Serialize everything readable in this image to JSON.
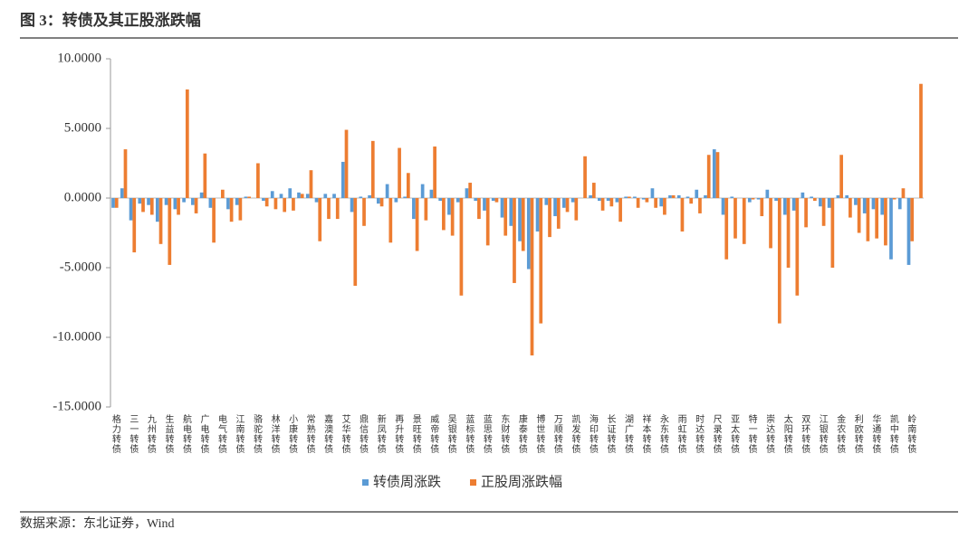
{
  "header": {
    "title": "图 3：转债及其正股涨跌幅"
  },
  "chart_data": {
    "type": "bar",
    "categories": [
      "格力转债",
      null,
      "三一转债",
      null,
      "九州转债",
      null,
      "生益转债",
      null,
      "航电转债",
      null,
      "广电转债",
      null,
      "电气转债",
      null,
      "江南转债",
      null,
      "骆驼转债",
      null,
      "林洋转债",
      null,
      "小康转债",
      null,
      "常熟转债",
      null,
      "嘉澳转债",
      null,
      "艾华转债",
      null,
      "鼎信转债",
      null,
      "新凤转债",
      null,
      "再升转债",
      null,
      "景旺转债",
      null,
      "威帝转债",
      null,
      "吴银转债",
      null,
      "蓝标转债",
      null,
      "蓝思转债",
      null,
      "东财转债",
      null,
      "康泰转债",
      null,
      "博世转债",
      null,
      "万顺转债",
      null,
      "凯发转债",
      null,
      "海印转债",
      null,
      "长证转债",
      null,
      "湖广转债",
      null,
      "祥本转债",
      null,
      "永东转债",
      null,
      "雨虹转债",
      null,
      "时达转债",
      null,
      "尺录转债",
      null,
      "亚太转债",
      null,
      "特一转债",
      null,
      "崇达转债",
      null,
      "太阳转债",
      null,
      "双环转债",
      null,
      "江银转债",
      null,
      "金农转债",
      null,
      "利欧转债",
      null,
      "华通转债",
      null,
      "凯中转债",
      null,
      "岭南转债",
      null
    ],
    "series": [
      {
        "name": "转债周涨跌",
        "color": "#5b9bd5",
        "values": [
          -0.7,
          0.7,
          -1.6,
          -0.4,
          -0.5,
          -1.7,
          -0.5,
          -0.8,
          -0.3,
          -0.5,
          0.4,
          -0.7,
          0,
          -0.8,
          -0.5,
          0.1,
          0,
          -0.2,
          0.5,
          0.3,
          0.7,
          0.4,
          0.3,
          -0.3,
          0.3,
          0.3,
          2.6,
          -1.0,
          0.1,
          0.2,
          -0.4,
          1.0,
          -0.3,
          0.1,
          -1.5,
          1.0,
          0.6,
          -0.2,
          -1.2,
          -0.3,
          0.7,
          -0.2,
          -0.9,
          -0.2,
          -1.4,
          -2.0,
          -3.1,
          -5.1,
          -2.4,
          -0.5,
          -1.3,
          -0.7,
          -0.3,
          0,
          0.2,
          -0.2,
          -0.2,
          -0.3,
          0.1,
          0.1,
          -0.1,
          0.7,
          -0.6,
          0.2,
          0.2,
          0.1,
          0.6,
          0.2,
          3.5,
          -1.2,
          0.1,
          0,
          -0.3,
          -0.1,
          0.6,
          -0.2,
          -1.2,
          -0.9,
          0.4,
          0.1,
          -0.6,
          -0.7,
          0.2,
          0.2,
          -0.5,
          -1.1,
          -0.8,
          -1.2,
          -4.4,
          -0.8,
          -4.8,
          0
        ]
      },
      {
        "name": "正股周涨跌幅",
        "color": "#ed7d31",
        "values": [
          -0.7,
          3.5,
          -3.9,
          -1.0,
          -1.2,
          -3.3,
          -4.8,
          -1.2,
          7.8,
          -1.1,
          3.2,
          -3.2,
          0.6,
          -1.7,
          -1.6,
          0.1,
          2.5,
          -0.6,
          -0.8,
          -1.0,
          -0.9,
          0.3,
          2.0,
          -3.1,
          -1.5,
          -1.5,
          4.9,
          -6.3,
          -2.0,
          4.1,
          -0.6,
          -3.2,
          3.6,
          1.8,
          -3.8,
          -1.6,
          3.7,
          -2.3,
          -2.7,
          -7.0,
          1.1,
          -1.5,
          -3.4,
          -0.3,
          -2.7,
          -6.1,
          -3.8,
          -11.3,
          -9.0,
          -2.8,
          -2.2,
          -1.0,
          -1.6,
          3.0,
          1.1,
          -0.9,
          -0.6,
          -1.7,
          0.1,
          -0.7,
          -0.3,
          -0.7,
          -1.2,
          0.2,
          -2.4,
          -0.4,
          -1.1,
          3.1,
          3.3,
          -4.4,
          -2.9,
          -3.3,
          -0.1,
          -1.3,
          -3.6,
          -9.0,
          -5.0,
          -7.0,
          -2.1,
          -0.2,
          -2.0,
          -5.0,
          3.1,
          -1.4,
          -2.5,
          -3.1,
          -2.9,
          -3.4,
          -0.1,
          0.7,
          -3.1,
          8.2
        ]
      }
    ],
    "ylim": [
      -15,
      10
    ],
    "yticks": [
      {
        "value": -15,
        "label": "-15.0000"
      },
      {
        "value": -10,
        "label": "-10.0000"
      },
      {
        "value": -5,
        "label": "-5.0000"
      },
      {
        "value": 0,
        "label": "0.0000"
      },
      {
        "value": 5,
        "label": "5.0000"
      },
      {
        "value": 10,
        "label": "10.0000"
      }
    ],
    "legend": "bottom"
  },
  "footer": {
    "source": "数据来源：东北证券，Wind"
  }
}
